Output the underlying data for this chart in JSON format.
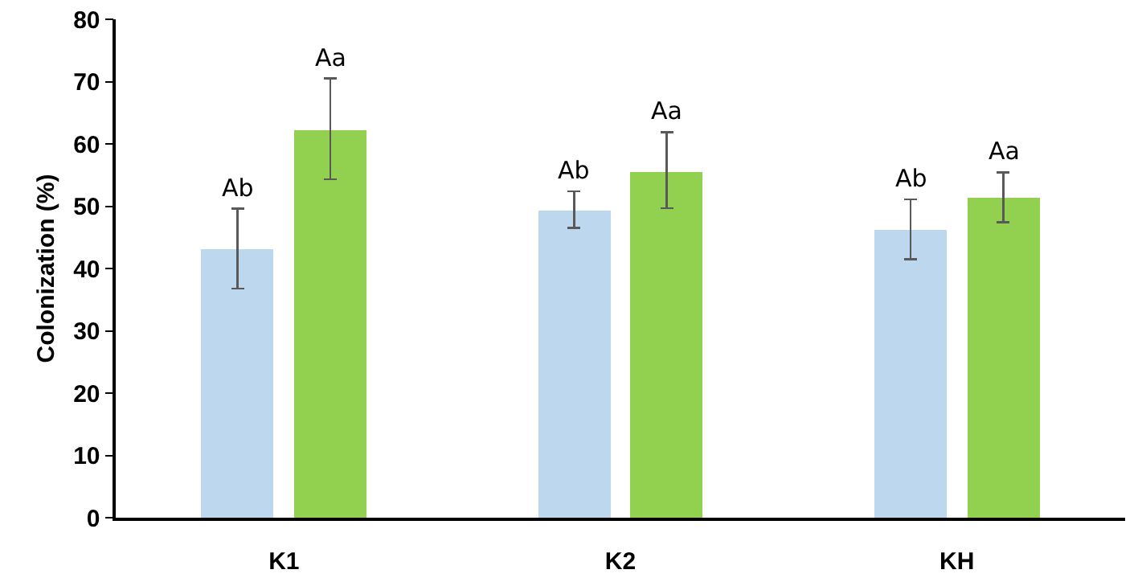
{
  "chart_data": {
    "type": "bar",
    "ylabel": "Colonization (%)",
    "categories": [
      "K1",
      "K2",
      "KH"
    ],
    "series": [
      {
        "color": "#bdd7ee",
        "values": [
          43.1,
          49.4,
          46.2
        ],
        "errors": [
          [
            36.8,
            49.6
          ],
          [
            46.5,
            52.4
          ],
          [
            41.5,
            51.1
          ]
        ],
        "value_labels": [
          "Ab",
          "Ab",
          "Ab"
        ]
      },
      {
        "color": "#92d050",
        "values": [
          62.3,
          55.6,
          51.4
        ],
        "errors": [
          [
            54.3,
            70.5
          ],
          [
            49.7,
            61.9
          ],
          [
            47.4,
            55.4
          ]
        ],
        "value_labels": [
          "Aa",
          "Aa",
          "Aa"
        ]
      }
    ],
    "ylim": [
      0,
      80
    ],
    "yticks": [
      0,
      10,
      20,
      30,
      40,
      50,
      60,
      70,
      80
    ],
    "grid": false
  }
}
